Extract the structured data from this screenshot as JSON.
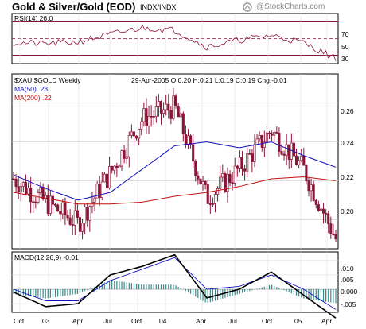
{
  "header": {
    "title": "Gold & Silver/Gold (EOD)",
    "subtitle": "INDX/INDX",
    "watermark": "@StockCharts.com"
  },
  "rsi_panel": {
    "label": "RSI(14) 26.0",
    "ticks": [
      "70",
      "50",
      "30"
    ]
  },
  "price_panel": {
    "symbol_label": "$XAU:$GOLD Weekly",
    "ma50_label": "MA(50) .23",
    "ma200_label": "MA(200) .22",
    "quote": "29-Apr-2005 O:0.20 H:0.21 L:0.19 C:0.19 Chg:-0.01",
    "ticks": [
      "0.26",
      "0.24",
      "0.22",
      "0.20"
    ]
  },
  "macd_panel": {
    "label": "MACD(12,26,9) -0.01",
    "ticks": [
      ".010",
      ".005",
      "0.000",
      "-.005"
    ]
  },
  "x_axis": {
    "labels": [
      "Oct",
      "03",
      "Apr",
      "Jul",
      "Oct",
      "04",
      "Apr",
      "Jul",
      "Oct",
      "05",
      "Apr"
    ]
  },
  "colors": {
    "candle": "#8b1538",
    "ma50": "#1010c0",
    "ma200": "#c01010",
    "rsi_line": "#8b1538",
    "rsi_band": "#8b1538",
    "macd": "#000000",
    "signal": "#1010c0",
    "histogram": "#3a8a8a"
  },
  "chart_data": {
    "type": "line",
    "x": [
      "Oct 02",
      "Jan 03",
      "Apr 03",
      "Jul 03",
      "Oct 03",
      "Jan 04",
      "Apr 04",
      "Jul 04",
      "Oct 04",
      "Jan 05",
      "Apr 05"
    ],
    "series": [
      {
        "name": "$XAU:$GOLD Weekly",
        "values": [
          0.221,
          0.209,
          0.198,
          0.224,
          0.252,
          0.258,
          0.211,
          0.226,
          0.246,
          0.226,
          0.19
        ]
      },
      {
        "name": "MA(50)",
        "values": [
          0.223,
          0.216,
          0.21,
          0.214,
          0.226,
          0.238,
          0.24,
          0.237,
          0.24,
          0.233,
          0.227
        ]
      },
      {
        "name": "MA(200)",
        "values": [
          0.214,
          0.211,
          0.208,
          0.208,
          0.209,
          0.212,
          0.214,
          0.217,
          0.221,
          0.222,
          0.22
        ]
      }
    ],
    "ylim": [
      0.185,
      0.275
    ],
    "rsi": {
      "x": [
        "Oct 02",
        "Jan 03",
        "Apr 03",
        "Jul 03",
        "Oct 03",
        "Jan 04",
        "Apr 04",
        "Jul 04",
        "Oct 04",
        "Jan 05",
        "Apr 05"
      ],
      "values": [
        45,
        44,
        46,
        55,
        63,
        60,
        40,
        48,
        54,
        45,
        26
      ],
      "ylim": [
        20,
        80
      ]
    },
    "macd": {
      "x": [
        "Oct 02",
        "Jan 03",
        "Apr 03",
        "Jul 03",
        "Oct 03",
        "Jan 04",
        "Apr 04",
        "Jul 04",
        "Oct 04",
        "Jan 05",
        "Apr 05"
      ],
      "macd": [
        -0.001,
        -0.006,
        -0.005,
        0.005,
        0.008,
        0.012,
        -0.003,
        0.0,
        0.006,
        -0.002,
        -0.01
      ],
      "signal": [
        0.0,
        -0.004,
        -0.004,
        0.003,
        0.007,
        0.011,
        0.0,
        0.001,
        0.005,
        0.0,
        -0.007
      ],
      "ylim": [
        -0.008,
        0.013
      ]
    }
  }
}
